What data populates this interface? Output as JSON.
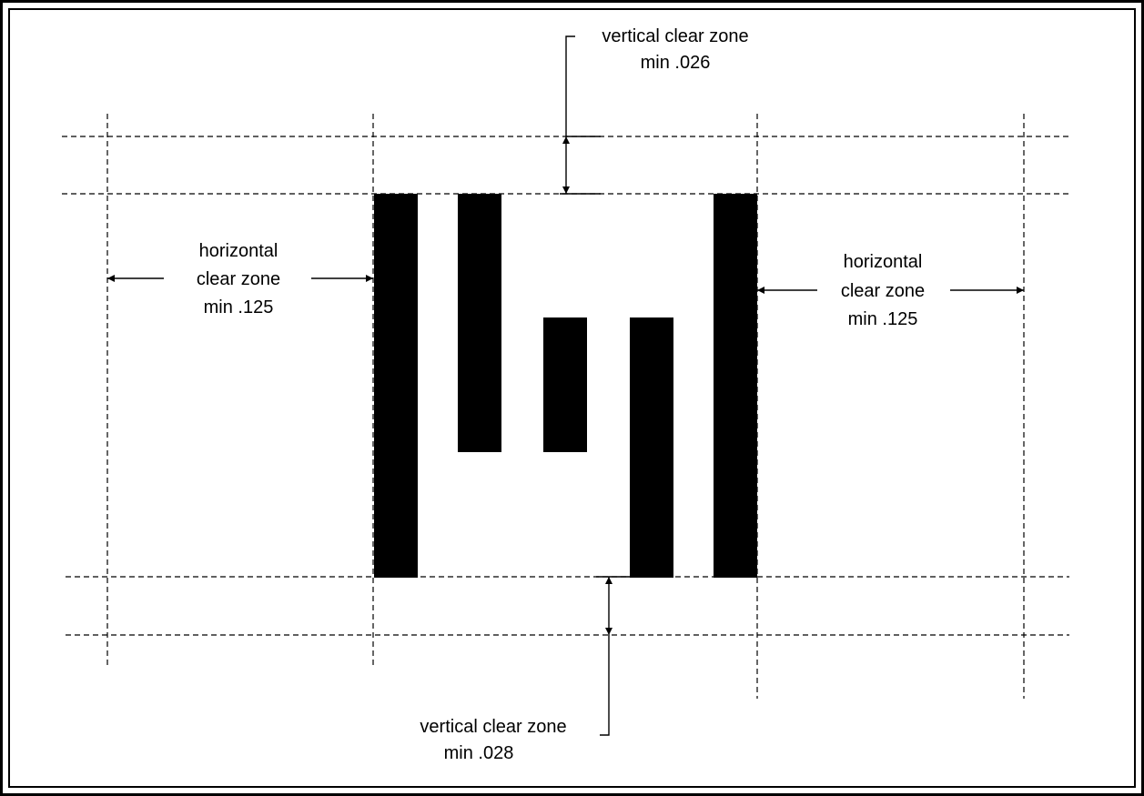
{
  "labels": {
    "top_vertical_line1": "vertical clear zone",
    "top_vertical_line2": "min .026",
    "left_horizontal_line1": "horizontal",
    "left_horizontal_line2": "clear zone",
    "left_horizontal_line3": "min .125",
    "right_horizontal_line1": "horizontal",
    "right_horizontal_line2": "clear zone",
    "right_horizontal_line3": "min .125",
    "bottom_vertical_line1": "vertical clear zone",
    "bottom_vertical_line2": "min .028"
  },
  "colors": {
    "ink": "#000000",
    "background": "#ffffff"
  }
}
